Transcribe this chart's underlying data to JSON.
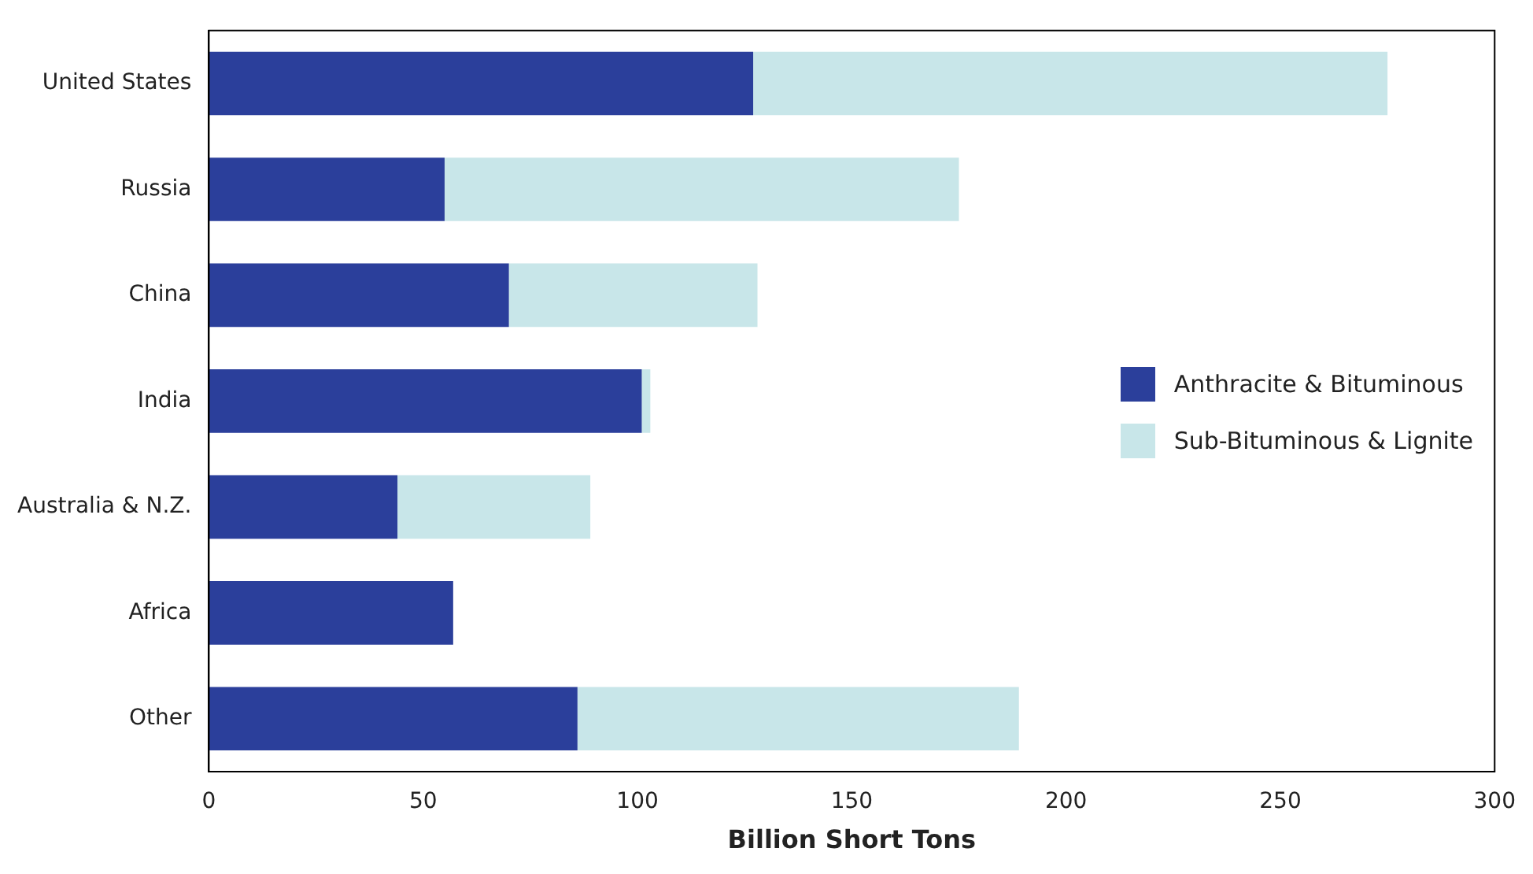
{
  "chart_data": {
    "type": "bar",
    "orientation": "horizontal",
    "stacked": true,
    "xlabel": "Billion Short Tons",
    "categories": [
      "United States",
      "Russia",
      "China",
      "India",
      "Australia & N.Z.",
      "Africa",
      "Other"
    ],
    "series": [
      {
        "name": "Anthracite & Bituminous",
        "color": "#2b3f9b",
        "values": [
          127,
          55,
          70,
          101,
          44,
          57,
          86
        ]
      },
      {
        "name": "Sub-Bituminous & Lignite",
        "color": "#c8e6e9",
        "values": [
          148,
          120,
          58,
          2,
          45,
          0,
          103
        ]
      }
    ],
    "xlim": [
      0,
      300
    ],
    "xticks": [
      0,
      50,
      100,
      150,
      200,
      250,
      300
    ],
    "grid": false,
    "legend": "right"
  }
}
